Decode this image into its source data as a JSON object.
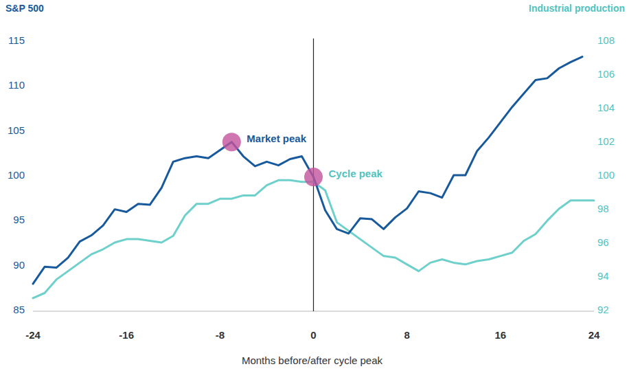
{
  "chart_data": {
    "type": "line",
    "x_label": "Months before/after cycle peak",
    "y_label": "S&P 500",
    "y2_label": "Industrial production",
    "x": [
      -24,
      -23,
      -22,
      -21,
      -20,
      -19,
      -18,
      -17,
      -16,
      -15,
      -14,
      -13,
      -12,
      -11,
      -10,
      -9,
      -8,
      -7,
      -6,
      -5,
      -4,
      -3,
      -2,
      -1,
      0,
      1,
      2,
      3,
      4,
      5,
      6,
      7,
      8,
      9,
      10,
      11,
      12,
      13,
      14,
      15,
      16,
      17,
      18,
      19,
      20,
      21,
      22,
      23,
      24
    ],
    "series": [
      {
        "name": "S&P 500",
        "color": "#17599b",
        "values": [
          87.9,
          89.8,
          89.7,
          90.8,
          92.6,
          93.3,
          94.4,
          96.2,
          95.9,
          96.8,
          96.7,
          98.6,
          101.5,
          101.9,
          102.1,
          101.9,
          102.8,
          103.7,
          102.1,
          101.0,
          101.5,
          101.1,
          101.8,
          102.1,
          99.8,
          96.1,
          94.0,
          93.5,
          95.2,
          95.1,
          94.0,
          95.3,
          96.3,
          98.2,
          98.0,
          97.5,
          100.0,
          100.0,
          102.7,
          104.2,
          105.9,
          107.6,
          109.1,
          110.6,
          110.8,
          111.9,
          112.6,
          113.2,
          null
        ]
      },
      {
        "name": "Industrial production",
        "color": "#6dd0cb",
        "axis": "y2",
        "values": [
          92.7,
          93.0,
          93.8,
          94.3,
          94.8,
          95.3,
          95.6,
          96.0,
          96.2,
          96.2,
          96.1,
          96.0,
          96.4,
          97.6,
          98.3,
          98.3,
          98.6,
          98.6,
          98.8,
          98.8,
          99.4,
          99.7,
          99.7,
          99.6,
          99.6,
          99.1,
          97.2,
          96.7,
          96.2,
          95.7,
          95.2,
          95.1,
          94.7,
          94.3,
          94.8,
          95.0,
          94.8,
          94.7,
          94.9,
          95.0,
          95.2,
          95.4,
          96.1,
          96.5,
          97.3,
          98.0,
          98.5,
          98.5,
          98.5
        ]
      }
    ],
    "annotations": [
      {
        "text": "Market peak",
        "x": -7,
        "y": 103.7,
        "color": "#17599b"
      },
      {
        "text": "Cycle peak",
        "x": 0,
        "y": 99.8,
        "color": "#4fc3bf"
      }
    ],
    "reference_line": {
      "x": 0
    },
    "xlim": [
      -24,
      24
    ],
    "xticks": [
      -24,
      -16,
      -8,
      0,
      8,
      16,
      24
    ],
    "ylim": [
      85,
      115
    ],
    "yticks": [
      85,
      90,
      95,
      100,
      105,
      110,
      115
    ],
    "y2lim": [
      92,
      108
    ],
    "y2ticks": [
      92,
      94,
      96,
      98,
      100,
      102,
      104,
      106,
      108
    ],
    "grid": false
  }
}
